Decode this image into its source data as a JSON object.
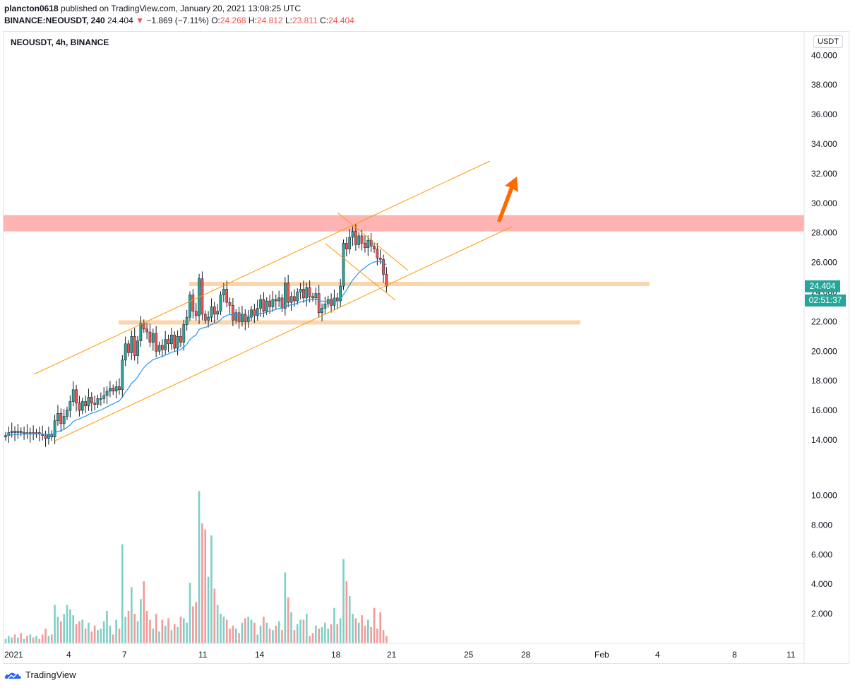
{
  "header": {
    "publisher": "plancton0618",
    "published_text": "published on TradingView.com, January 20, 2021 13:08:25 UTC",
    "symbol_line": "BINANCE:NEOUSDT, 240",
    "last": "24.404",
    "change": "−1.869 (−7.11%)",
    "o_label": "O:",
    "o_value": "24.268",
    "h_label": "H:",
    "h_value": "24.812",
    "l_label": "L:",
    "l_value": "23.811",
    "c_label": "C:",
    "c_value": "24.404"
  },
  "symbol_title": "NEOUSDT, 4h, BINANCE",
  "currency": "USDT",
  "price_tag": "24.404",
  "countdown": "02:51:37",
  "footer": {
    "brand": "TradingView"
  },
  "colors": {
    "up": "#26a69a",
    "down": "#ef5350",
    "ma": "#2196f3",
    "channel": "#ff9800",
    "resistance_zone": "#ffb3b3",
    "support_line": "#fbd5ad",
    "arrow": "#ff6a00",
    "vol_up": "#7fcfc6",
    "vol_down": "#f29a9a"
  },
  "chart_data": {
    "type": "candlestick",
    "price_axis": {
      "ticks": [
        "40.000",
        "38.000",
        "36.000",
        "34.000",
        "32.000",
        "30.000",
        "28.000",
        "26.000",
        "24.000",
        "22.000",
        "20.000",
        "18.000",
        "16.000",
        "14.000"
      ],
      "range": [
        13.0,
        41.0
      ]
    },
    "volume_axis": {
      "ticks": [
        "10.000",
        "8.000",
        "6.000",
        "4.000",
        "2.000"
      ],
      "range": [
        0,
        11.0
      ]
    },
    "x_axis": {
      "ticks": [
        "2021",
        "4",
        "7",
        "11",
        "14",
        "18",
        "21",
        "25",
        "28",
        "Feb",
        "4",
        "8",
        "11"
      ]
    },
    "closes": [
      14.3,
      14.5,
      14.6,
      14.5,
      14.6,
      14.5,
      14.5,
      14.4,
      14.5,
      14.4,
      14.5,
      14.4,
      14.3,
      14.1,
      14.4,
      14.2,
      15.3,
      15.8,
      15.1,
      15.6,
      16.0,
      16.6,
      17.4,
      16.5,
      16.0,
      16.6,
      16.3,
      16.9,
      16.5,
      16.4,
      16.8,
      16.8,
      17.0,
      17.3,
      17.5,
      17.3,
      17.6,
      17.4,
      19.4,
      20.5,
      19.9,
      21.0,
      19.7,
      20.7,
      21.9,
      21.5,
      21.3,
      20.6,
      21.2,
      20.0,
      20.4,
      20.1,
      20.8,
      20.5,
      21.1,
      20.2,
      21.0,
      20.6,
      21.8,
      22.3,
      23.8,
      22.7,
      22.4,
      24.9,
      22.5,
      22.1,
      22.3,
      23.0,
      22.5,
      22.7,
      23.8,
      24.2,
      23.3,
      23.1,
      22.1,
      22.6,
      22.0,
      22.5,
      22.0,
      22.3,
      22.8,
      22.4,
      22.9,
      23.5,
      22.7,
      23.4,
      23.0,
      23.5,
      23.4,
      23.6,
      22.9,
      24.6,
      23.3,
      23.7,
      23.4,
      24.0,
      24.2,
      23.6,
      24.3,
      23.7,
      23.6,
      23.9,
      22.6,
      22.9,
      23.2,
      23.5,
      23.1,
      23.6,
      23.4,
      24.4,
      27.3,
      26.9,
      27.7,
      28.1,
      27.2,
      27.8,
      27.3,
      27.0,
      27.5,
      27.1,
      26.9,
      26.3,
      26.2,
      25.2,
      24.4
    ],
    "volumes": [
      0.3,
      0.5,
      0.4,
      0.6,
      0.4,
      0.7,
      0.3,
      0.5,
      0.6,
      0.4,
      0.5,
      0.3,
      0.6,
      1.0,
      0.5,
      0.6,
      2.6,
      1.8,
      1.5,
      2.0,
      2.6,
      2.3,
      1.9,
      1.3,
      1.5,
      1.6,
      1.0,
      1.4,
      0.8,
      1.2,
      0.9,
      1.0,
      1.5,
      2.2,
      1.2,
      0.6,
      1.6,
      1.0,
      6.7,
      1.8,
      2.2,
      3.8,
      2.0,
      1.5,
      3.0,
      4.2,
      2.2,
      1.6,
      1.0,
      2.0,
      0.8,
      1.6,
      1.2,
      1.7,
      0.9,
      1.3,
      1.1,
      1.8,
      1.7,
      1.4,
      4.1,
      2.5,
      2.8,
      10.3,
      8.1,
      7.7,
      4.5,
      7.3,
      3.7,
      2.6,
      2.0,
      1.8,
      1.6,
      1.0,
      1.2,
      1.0,
      0.7,
      1.4,
      1.7,
      1.8,
      1.6,
      1.4,
      0.6,
      1.2,
      1.8,
      1.4,
      1.0,
      0.9,
      1.2,
      1.5,
      0.9,
      4.8,
      3.1,
      2.1,
      0.9,
      1.3,
      1.6,
      1.6,
      2.0,
      0.5,
      0.7,
      1.2,
      1.0,
      1.1,
      1.4,
      1.0,
      1.3,
      2.4,
      1.3,
      1.7,
      5.7,
      4.2,
      3.2,
      2.0,
      1.7,
      1.4,
      1.9,
      1.2,
      1.6,
      1.1,
      2.4,
      1.0,
      2.1,
      0.9,
      0.5
    ]
  }
}
